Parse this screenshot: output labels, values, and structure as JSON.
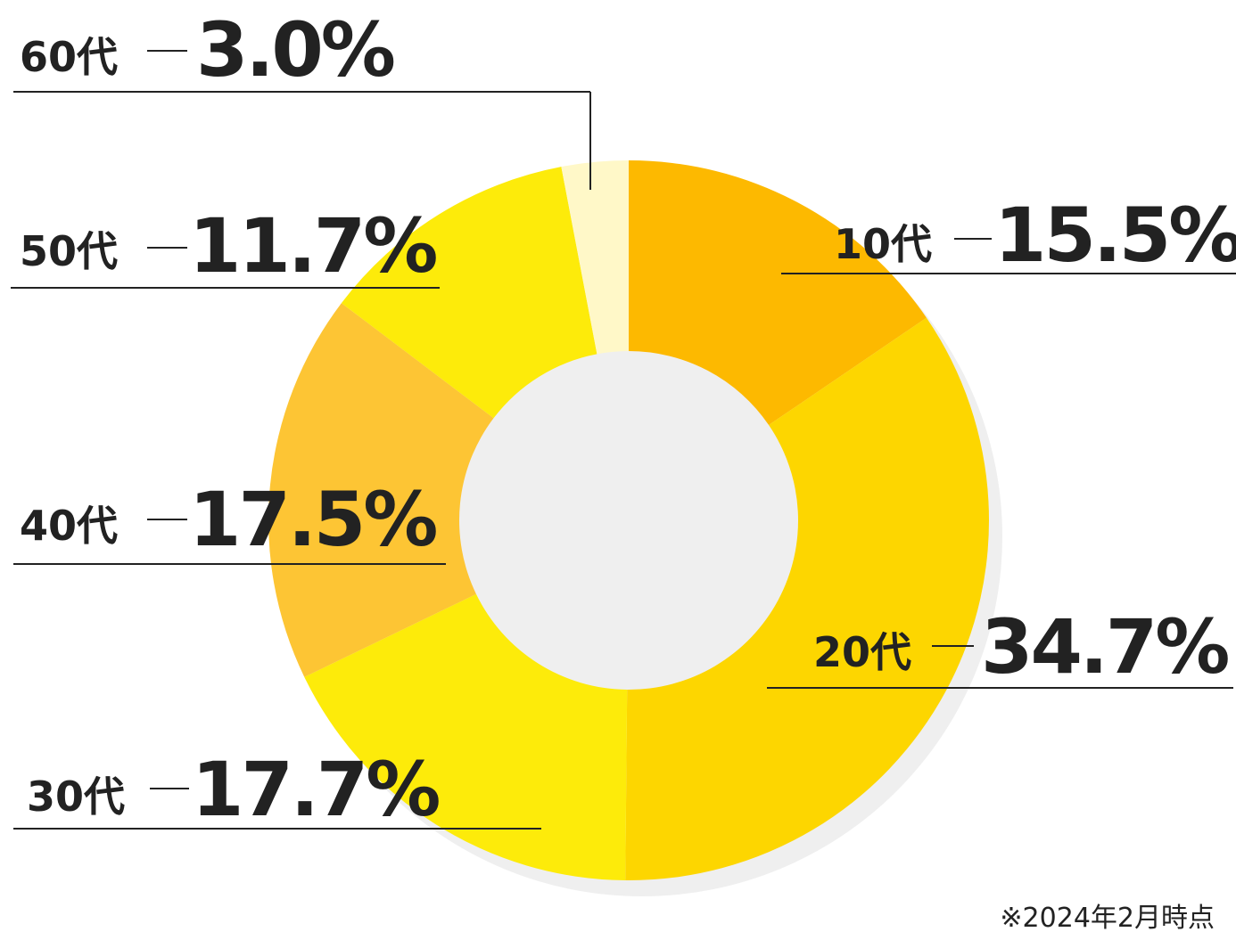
{
  "chart_data": {
    "type": "donut",
    "categories": [
      "10代",
      "20代",
      "30代",
      "40代",
      "50代",
      "60代"
    ],
    "values": [
      15.5,
      34.7,
      17.7,
      17.5,
      11.7,
      3.0
    ],
    "value_labels": [
      "15.5%",
      "34.7%",
      "17.7%",
      "17.5%",
      "11.7%",
      "3.0%"
    ],
    "colors": [
      "#fdb900",
      "#fdd600",
      "#fdeb0a",
      "#fdc534",
      "#fdeb0a",
      "#fff8c8"
    ],
    "note": "※2024年2月時点"
  }
}
